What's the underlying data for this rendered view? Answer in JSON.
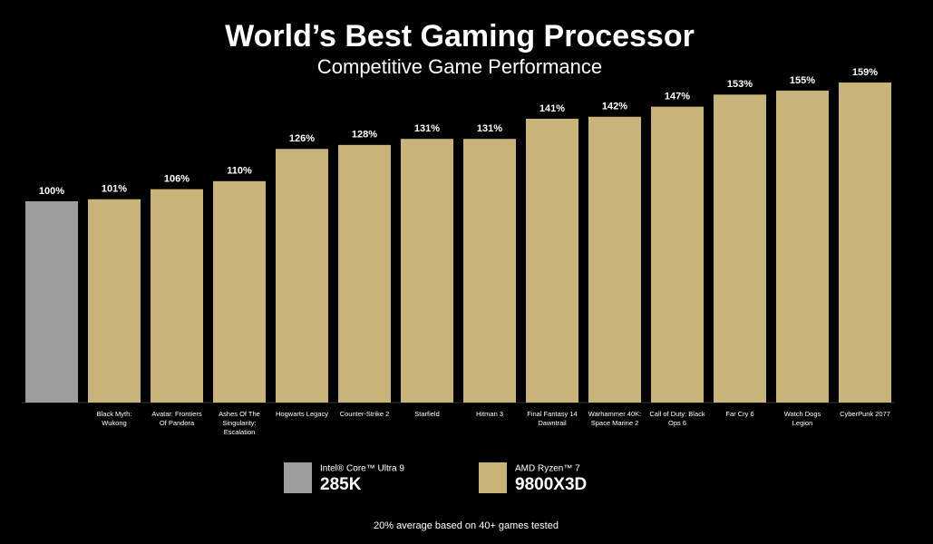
{
  "chart_data": {
    "type": "bar",
    "title": "World’s Best Gaming Processor",
    "subtitle": "Competitive Game Performance",
    "categories": [
      null,
      "Black Myth: Wukong",
      "Avatar: Frontiers Of Pandora",
      "Ashes Of The Singularity: Escalation",
      "Hogwarts Legacy",
      "Counter-Strike 2",
      "Starfield",
      "Hitman 3",
      "Final Fantasy 14 Dawntrail",
      "Warhammer 40K: Space Marine 2",
      "Call of Duty: Black Ops 6",
      "Far Cry 6",
      "Watch Dogs Legion",
      "CyberPunk 2077"
    ],
    "values": [
      100,
      101,
      106,
      110,
      126,
      128,
      131,
      131,
      141,
      142,
      147,
      153,
      155,
      159
    ],
    "value_labels": [
      "100%",
      "101%",
      "106%",
      "110%",
      "126%",
      "128%",
      "131%",
      "131%",
      "141%",
      "142%",
      "147%",
      "153%",
      "155%",
      "159%"
    ],
    "colors": [
      "#9d9d9d",
      "#c8b479",
      "#c8b479",
      "#c8b479",
      "#c8b479",
      "#c8b479",
      "#c8b479",
      "#c8b479",
      "#c8b479",
      "#c8b479",
      "#c8b479",
      "#c8b479",
      "#c8b479",
      "#c8b479"
    ],
    "legend": [
      {
        "brand": "Intel® Core™ Ultra 9",
        "model": "285K",
        "color": "#9d9d9d"
      },
      {
        "brand": "AMD Ryzen™ 7",
        "model": "9800X3D",
        "color": "#c8b479"
      }
    ],
    "note": "20% average based on 40+ games tested"
  }
}
